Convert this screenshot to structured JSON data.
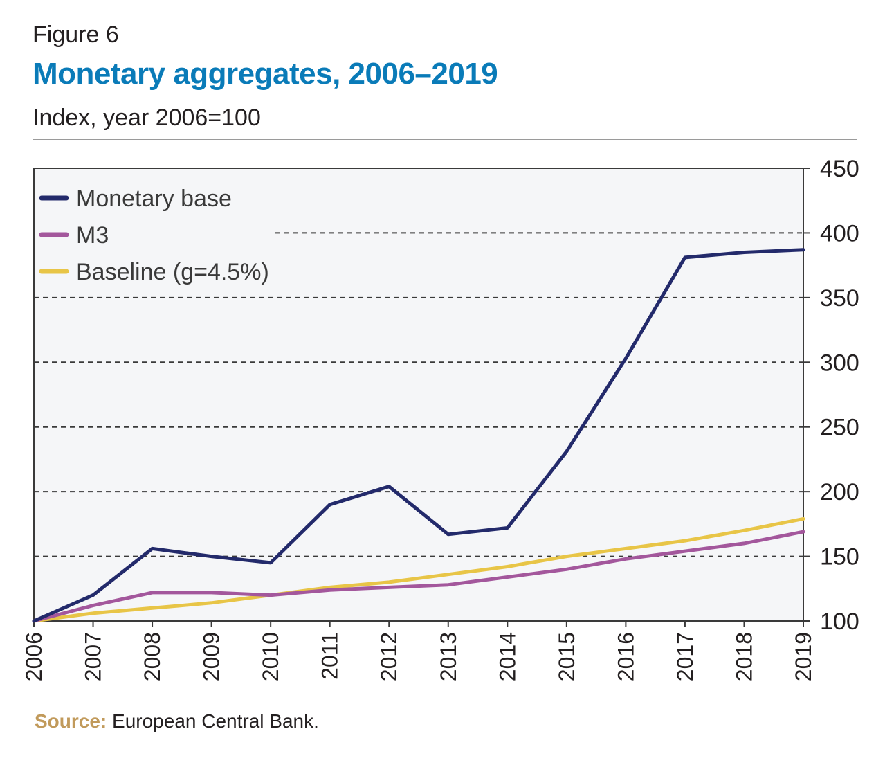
{
  "figure_label": "Figure 6",
  "title": "Monetary aggregates, 2006–2019",
  "subtitle": "Index, year 2006=100",
  "source": {
    "label": "Source:",
    "text": " European Central Bank."
  },
  "colors": {
    "monetary_base": "#232a6b",
    "m3": "#a3579c",
    "baseline": "#e8c547",
    "plot_background": "#f5f6f8",
    "title": "#0a7bb8",
    "source_label": "#c19a5b"
  },
  "chart_data": {
    "type": "line",
    "title": "Monetary aggregates, 2006–2019",
    "subtitle": "Index, year 2006=100",
    "x": [
      "2006",
      "2007",
      "2008",
      "2009",
      "2010",
      "2011",
      "2012",
      "2013",
      "2014",
      "2015",
      "2016",
      "2017",
      "2018",
      "2019"
    ],
    "ylim": [
      100,
      450
    ],
    "yticks": [
      100,
      150,
      200,
      250,
      300,
      350,
      400,
      450
    ],
    "y_axis_side": "right",
    "x_tick_orientation": "vertical",
    "grid": "horizontal dashed",
    "legend_position": "top-left",
    "series": [
      {
        "name": "Monetary base",
        "color": "#232a6b",
        "values": [
          100,
          120,
          156,
          150,
          145,
          190,
          204,
          167,
          172,
          231,
          303,
          381,
          385,
          387
        ]
      },
      {
        "name": "M3",
        "color": "#a3579c",
        "values": [
          100,
          112,
          122,
          122,
          120,
          124,
          126,
          128,
          134,
          140,
          148,
          154,
          160,
          169
        ]
      },
      {
        "name": "Baseline (g=4.5%)",
        "color": "#e8c547",
        "values": [
          100,
          106,
          110,
          114,
          120,
          126,
          130,
          136,
          142,
          150,
          156,
          162,
          170,
          179
        ]
      }
    ]
  }
}
